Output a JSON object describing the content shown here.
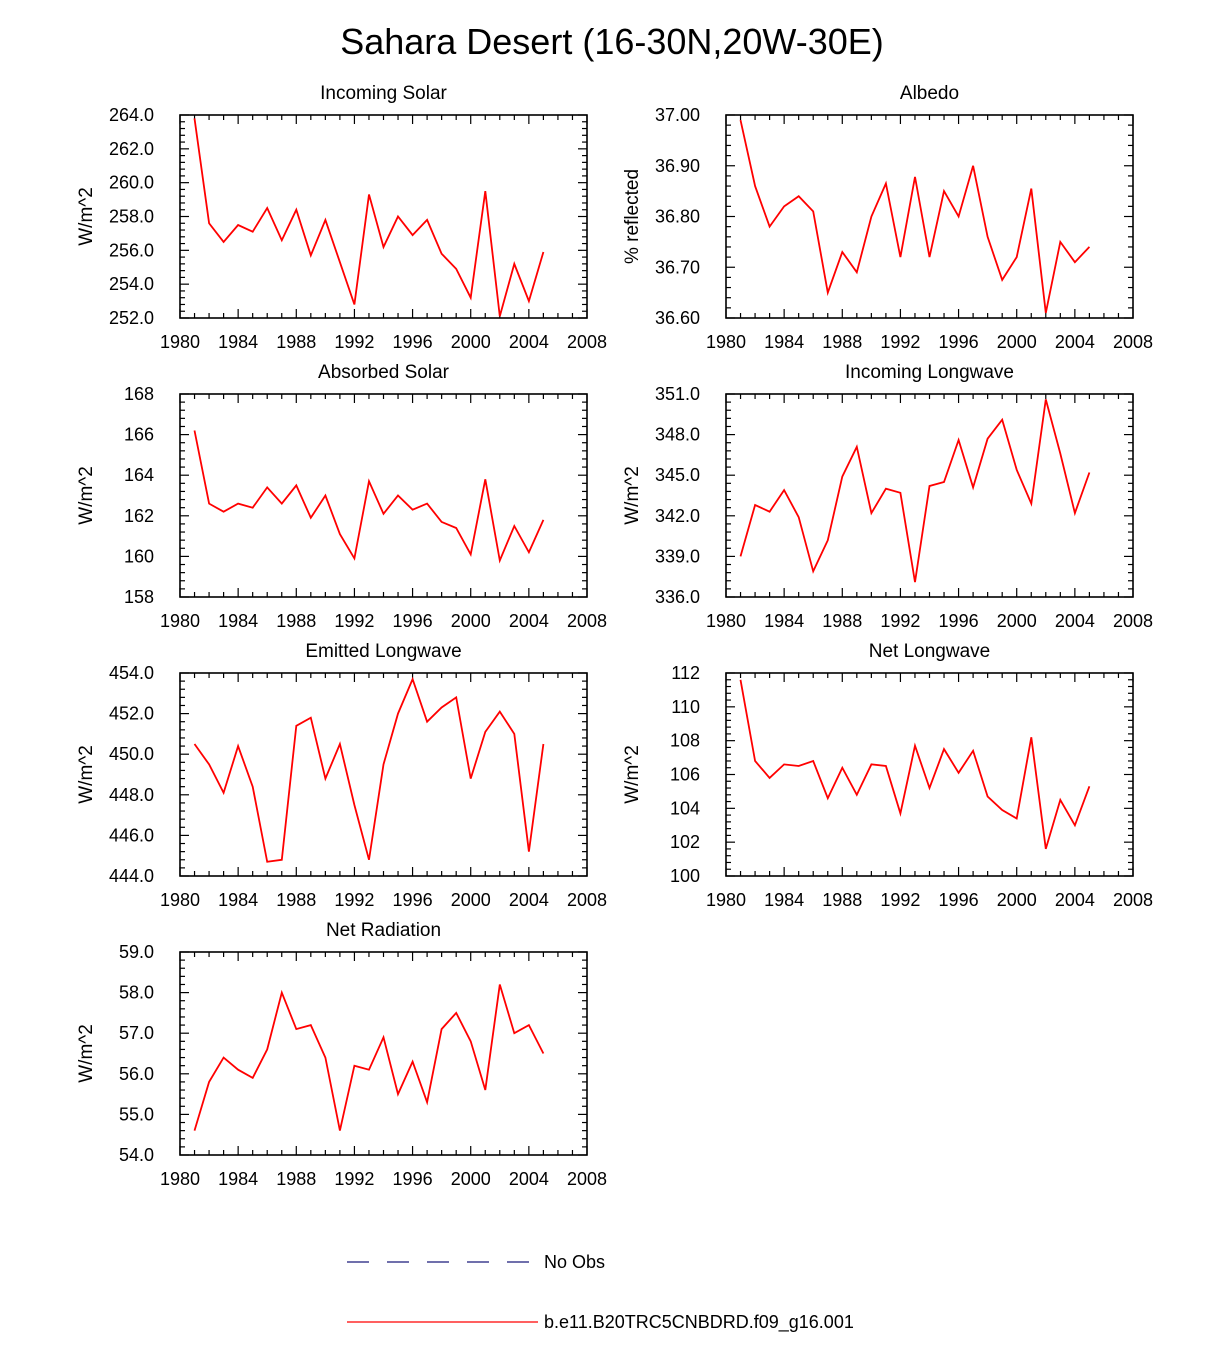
{
  "title": "Sahara Desert (16-30N,20W-30E)",
  "legend": [
    {
      "label": "No Obs",
      "style": "dashed",
      "color": "#1a1a7a"
    },
    {
      "label": "b.e11.B20TRC5CNBDRD.f09_g16.001",
      "style": "solid",
      "color": "#ff0000"
    }
  ],
  "chart_data": [
    {
      "type": "line",
      "title": "Incoming Solar",
      "ylabel": "W/m^2",
      "xlim": [
        1980,
        2008
      ],
      "xticks": [
        "1980",
        "1984",
        "1988",
        "1992",
        "1996",
        "2000",
        "2004",
        "2008"
      ],
      "ylim": [
        252,
        264
      ],
      "yticks": [
        "252.0",
        "254.0",
        "256.0",
        "258.0",
        "260.0",
        "262.0",
        "264.0"
      ],
      "x": [
        1981,
        1982,
        1983,
        1984,
        1985,
        1986,
        1987,
        1988,
        1989,
        1990,
        1991,
        1992,
        1993,
        1994,
        1995,
        1996,
        1997,
        1998,
        1999,
        2000,
        2001,
        2002,
        2003,
        2004,
        2005
      ],
      "values": [
        263.8,
        257.6,
        256.5,
        257.5,
        257.1,
        258.5,
        256.6,
        258.4,
        255.7,
        257.8,
        255.3,
        252.8,
        259.3,
        256.2,
        258.0,
        256.9,
        257.8,
        255.8,
        254.9,
        253.2,
        259.5,
        252.1,
        255.2,
        253.0,
        255.9
      ]
    },
    {
      "type": "line",
      "title": "Albedo",
      "ylabel": "% reflected",
      "xlim": [
        1980,
        2008
      ],
      "xticks": [
        "1980",
        "1984",
        "1988",
        "1992",
        "1996",
        "2000",
        "2004",
        "2008"
      ],
      "ylim": [
        36.6,
        37.0
      ],
      "yticks": [
        "36.60",
        "36.70",
        "36.80",
        "36.90",
        "37.00"
      ],
      "x": [
        1981,
        1982,
        1983,
        1984,
        1985,
        1986,
        1987,
        1988,
        1989,
        1990,
        1991,
        1992,
        1993,
        1994,
        1995,
        1996,
        1997,
        1998,
        1999,
        2000,
        2001,
        2002,
        2003,
        2004,
        2005
      ],
      "values": [
        36.99,
        36.86,
        36.78,
        36.82,
        36.84,
        36.81,
        36.65,
        36.73,
        36.69,
        36.8,
        36.865,
        36.72,
        36.878,
        36.72,
        36.85,
        36.8,
        36.9,
        36.76,
        36.675,
        36.72,
        36.855,
        36.61,
        36.75,
        36.71,
        36.74
      ]
    },
    {
      "type": "line",
      "title": "Absorbed Solar",
      "ylabel": "W/m^2",
      "xlim": [
        1980,
        2008
      ],
      "xticks": [
        "1980",
        "1984",
        "1988",
        "1992",
        "1996",
        "2000",
        "2004",
        "2008"
      ],
      "ylim": [
        158,
        168
      ],
      "yticks": [
        "158",
        "160",
        "162",
        "164",
        "166",
        "168"
      ],
      "x": [
        1981,
        1982,
        1983,
        1984,
        1985,
        1986,
        1987,
        1988,
        1989,
        1990,
        1991,
        1992,
        1993,
        1994,
        1995,
        1996,
        1997,
        1998,
        1999,
        2000,
        2001,
        2002,
        2003,
        2004,
        2005
      ],
      "values": [
        166.2,
        162.6,
        162.2,
        162.6,
        162.4,
        163.4,
        162.6,
        163.5,
        161.9,
        163.0,
        161.1,
        159.9,
        163.7,
        162.1,
        163.0,
        162.3,
        162.6,
        161.7,
        161.4,
        160.1,
        163.8,
        159.8,
        161.5,
        160.2,
        161.8
      ]
    },
    {
      "type": "line",
      "title": "Incoming Longwave",
      "ylabel": "W/m^2",
      "xlim": [
        1980,
        2008
      ],
      "xticks": [
        "1980",
        "1984",
        "1988",
        "1992",
        "1996",
        "2000",
        "2004",
        "2008"
      ],
      "ylim": [
        336,
        351
      ],
      "yticks": [
        "336.0",
        "339.0",
        "342.0",
        "345.0",
        "348.0",
        "351.0"
      ],
      "x": [
        1981,
        1982,
        1983,
        1984,
        1985,
        1986,
        1987,
        1988,
        1989,
        1990,
        1991,
        1992,
        1993,
        1994,
        1995,
        1996,
        1997,
        1998,
        1999,
        2000,
        2001,
        2002,
        2003,
        2004,
        2005
      ],
      "values": [
        339.0,
        342.8,
        342.3,
        343.9,
        341.9,
        337.9,
        340.2,
        344.9,
        347.1,
        342.2,
        344.0,
        343.7,
        337.1,
        344.2,
        344.5,
        347.6,
        344.1,
        347.7,
        349.1,
        345.4,
        342.9,
        350.6,
        346.6,
        342.2,
        345.2
      ]
    },
    {
      "type": "line",
      "title": "Emitted Longwave",
      "ylabel": "W/m^2",
      "xlim": [
        1980,
        2008
      ],
      "xticks": [
        "1980",
        "1984",
        "1988",
        "1992",
        "1996",
        "2000",
        "2004",
        "2008"
      ],
      "ylim": [
        444,
        454
      ],
      "yticks": [
        "444.0",
        "446.0",
        "448.0",
        "450.0",
        "452.0",
        "454.0"
      ],
      "x": [
        1981,
        1982,
        1983,
        1984,
        1985,
        1986,
        1987,
        1988,
        1989,
        1990,
        1991,
        1992,
        1993,
        1994,
        1995,
        1996,
        1997,
        1998,
        1999,
        2000,
        2001,
        2002,
        2003,
        2004,
        2005
      ],
      "values": [
        450.5,
        449.5,
        448.1,
        450.4,
        448.4,
        444.7,
        444.8,
        451.4,
        451.8,
        448.8,
        450.5,
        447.5,
        444.8,
        449.5,
        452.0,
        453.7,
        451.6,
        452.3,
        452.8,
        448.8,
        451.1,
        452.1,
        451.0,
        445.2,
        450.5
      ]
    },
    {
      "type": "line",
      "title": "Net Longwave",
      "ylabel": "W/m^2",
      "xlim": [
        1980,
        2008
      ],
      "xticks": [
        "1980",
        "1984",
        "1988",
        "1992",
        "1996",
        "2000",
        "2004",
        "2008"
      ],
      "ylim": [
        100,
        112
      ],
      "yticks": [
        "100",
        "102",
        "104",
        "106",
        "108",
        "110",
        "112"
      ],
      "x": [
        1981,
        1982,
        1983,
        1984,
        1985,
        1986,
        1987,
        1988,
        1989,
        1990,
        1991,
        1992,
        1993,
        1994,
        1995,
        1996,
        1997,
        1998,
        1999,
        2000,
        2001,
        2002,
        2003,
        2004,
        2005
      ],
      "values": [
        111.6,
        106.8,
        105.8,
        106.6,
        106.5,
        106.8,
        104.6,
        106.4,
        104.8,
        106.6,
        106.5,
        103.7,
        107.7,
        105.2,
        107.5,
        106.1,
        107.4,
        104.7,
        103.9,
        103.4,
        108.2,
        101.6,
        104.5,
        103.0,
        105.3
      ]
    },
    {
      "type": "line",
      "title": "Net Radiation",
      "ylabel": "W/m^2",
      "xlim": [
        1980,
        2008
      ],
      "xticks": [
        "1980",
        "1984",
        "1988",
        "1992",
        "1996",
        "2000",
        "2004",
        "2008"
      ],
      "ylim": [
        54,
        59
      ],
      "yticks": [
        "54.0",
        "55.0",
        "56.0",
        "57.0",
        "58.0",
        "59.0"
      ],
      "x": [
        1981,
        1982,
        1983,
        1984,
        1985,
        1986,
        1987,
        1988,
        1989,
        1990,
        1991,
        1992,
        1993,
        1994,
        1995,
        1996,
        1997,
        1998,
        1999,
        2000,
        2001,
        2002,
        2003,
        2004,
        2005
      ],
      "values": [
        54.6,
        55.8,
        56.4,
        56.1,
        55.9,
        56.6,
        58.0,
        57.1,
        57.2,
        56.4,
        54.6,
        56.2,
        56.1,
        56.9,
        55.5,
        56.3,
        55.3,
        57.1,
        57.5,
        56.8,
        55.6,
        58.2,
        57.0,
        57.2,
        56.5
      ]
    }
  ]
}
